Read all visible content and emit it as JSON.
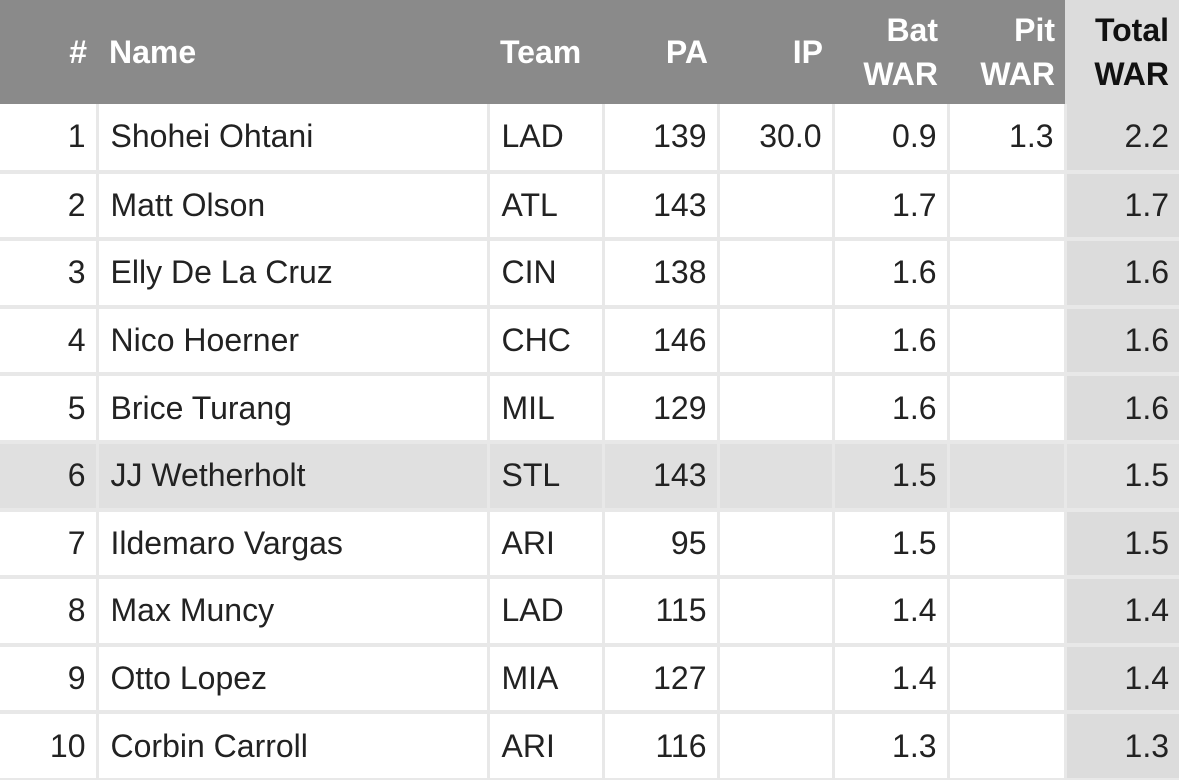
{
  "table": {
    "header": [
      "#",
      "Name",
      "Team",
      "PA",
      "IP",
      "Bat WAR",
      "Pit WAR",
      "Total WAR"
    ],
    "rows": [
      [
        "1",
        "Shohei Ohtani",
        "LAD",
        "139",
        "30.0",
        "0.9",
        "1.3",
        "2.2"
      ],
      [
        "2",
        "Matt Olson",
        "ATL",
        "143",
        null,
        "1.7",
        null,
        "1.7"
      ],
      [
        "3",
        "Elly De La Cruz",
        "CIN",
        "138",
        null,
        "1.6",
        null,
        "1.6"
      ],
      [
        "4",
        "Nico Hoerner",
        "CHC",
        "146",
        null,
        "1.6",
        null,
        "1.6"
      ],
      [
        "5",
        "Brice Turang",
        "MIL",
        "129",
        null,
        "1.6",
        null,
        "1.6"
      ],
      [
        "6",
        "JJ Wetherholt",
        "STL",
        "143",
        null,
        "1.5",
        null,
        "1.5"
      ],
      [
        "7",
        "Ildemaro Vargas",
        "ARI",
        "95",
        null,
        "1.5",
        null,
        "1.5"
      ],
      [
        "8",
        "Max Muncy",
        "LAD",
        "115",
        null,
        "1.4",
        null,
        "1.4"
      ],
      [
        "9",
        "Otto Lopez",
        "MIA",
        "127",
        null,
        "1.4",
        null,
        "1.4"
      ],
      [
        "10",
        "Corbin Carroll",
        "ARI",
        "116",
        null,
        "1.3",
        null,
        "1.3"
      ]
    ]
  }
}
